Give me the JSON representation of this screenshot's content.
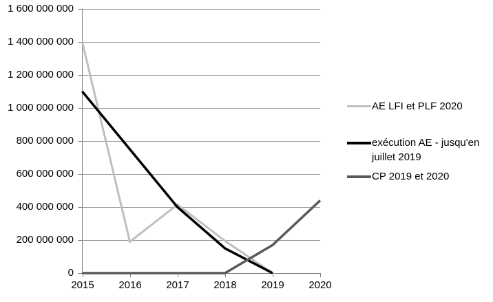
{
  "chart_data": {
    "type": "line",
    "title": "",
    "xlabel": "",
    "ylabel": "",
    "x": [
      2015,
      2016,
      2017,
      2018,
      2019,
      2020
    ],
    "x_tick_labels": [
      "2015",
      "2016",
      "2017",
      "2018",
      "2019",
      "2020"
    ],
    "ylim": [
      0,
      1600000000
    ],
    "y_ticks": [
      {
        "value": 0,
        "label": "0"
      },
      {
        "value": 200000000,
        "label": "200 000 000"
      },
      {
        "value": 400000000,
        "label": "400 000 000"
      },
      {
        "value": 600000000,
        "label": "600 000 000"
      },
      {
        "value": 800000000,
        "label": "800 000 000"
      },
      {
        "value": 1000000000,
        "label": "1 000 000 000"
      },
      {
        "value": 1200000000,
        "label": "1 200 000 000"
      },
      {
        "value": 1400000000,
        "label": "1 400 000 000"
      },
      {
        "value": 1600000000,
        "label": "1 600 000 000"
      }
    ],
    "grid": true,
    "legend_position": "right",
    "colors": {
      "gridline": "#999999",
      "axis": "#808080",
      "text": "#000000"
    },
    "series": [
      {
        "name": "AE LFI et PLF 2020",
        "color": "#bfbfbf",
        "stroke_width": 3,
        "values": [
          1400000000,
          190000000,
          415000000,
          195000000,
          0,
          null
        ]
      },
      {
        "name": "exécution AE - jusqu'en juillet 2019",
        "color": "#000000",
        "stroke_width": 3.5,
        "values": [
          1100000000,
          750000000,
          400000000,
          150000000,
          0,
          null
        ]
      },
      {
        "name": "CP 2019 et 2020",
        "color": "#595959",
        "stroke_width": 3.5,
        "values": [
          0,
          0,
          0,
          0,
          170000000,
          440000000
        ]
      }
    ]
  }
}
